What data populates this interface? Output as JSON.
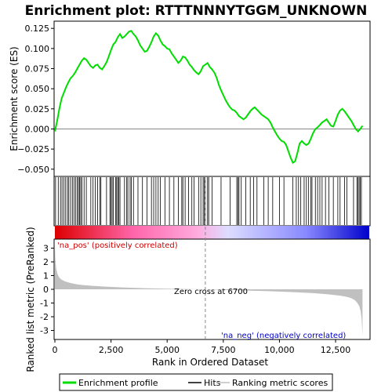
{
  "chart_data": {
    "type": "line",
    "title": "Enrichment plot: RTTTNNNYTGGM_UNKNOWN",
    "es_panel": {
      "ylabel": "Enrichment score (ES)",
      "ylim": [
        -0.058,
        0.133
      ],
      "yticks": [
        -0.05,
        -0.025,
        0.0,
        0.025,
        0.05,
        0.075,
        0.1,
        0.125
      ],
      "ytick_labels": [
        "−0.050",
        "−0.025",
        "0.000",
        "0.025",
        "0.050",
        "0.075",
        "0.100",
        "0.125"
      ],
      "series": [
        {
          "name": "Enrichment profile",
          "color": "#00dd00",
          "x": [
            0,
            100,
            200,
            300,
            400,
            500,
            600,
            700,
            800,
            900,
            1000,
            1100,
            1200,
            1300,
            1400,
            1500,
            1600,
            1700,
            1800,
            1900,
            2000,
            2100,
            2200,
            2300,
            2400,
            2500,
            2600,
            2700,
            2800,
            2900,
            3000,
            3100,
            3200,
            3300,
            3400,
            3500,
            3600,
            3700,
            3800,
            3900,
            4000,
            4100,
            4200,
            4300,
            4400,
            4500,
            4600,
            4700,
            4800,
            4900,
            5000,
            5100,
            5200,
            5300,
            5400,
            5500,
            5600,
            5700,
            5800,
            5900,
            6000,
            6100,
            6200,
            6300,
            6400,
            6500,
            6600,
            6700,
            6800,
            6900,
            7000,
            7100,
            7200,
            7300,
            7400,
            7500,
            7600,
            7700,
            7800,
            7900,
            8000,
            8100,
            8200,
            8300,
            8400,
            8500,
            8600,
            8700,
            8800,
            8900,
            9000,
            9100,
            9200,
            9300,
            9400,
            9500,
            9600,
            9700,
            9800,
            9900,
            10000,
            10100,
            10200,
            10300,
            10400,
            10500,
            10600,
            10700,
            10800,
            10900,
            11000,
            11100,
            11200,
            11300,
            11400,
            11500,
            11600,
            11700,
            11800,
            11900,
            12000,
            12100,
            12200,
            12300,
            12400,
            12500,
            12600,
            12700,
            12800,
            12900,
            13000,
            13100,
            13200,
            13300,
            13400,
            13500,
            13600,
            13700
          ],
          "y": [
            -0.003,
            0.01,
            0.025,
            0.038,
            0.045,
            0.052,
            0.058,
            0.063,
            0.066,
            0.07,
            0.075,
            0.08,
            0.085,
            0.088,
            0.086,
            0.082,
            0.078,
            0.076,
            0.079,
            0.08,
            0.076,
            0.074,
            0.078,
            0.083,
            0.09,
            0.098,
            0.105,
            0.108,
            0.114,
            0.118,
            0.113,
            0.115,
            0.118,
            0.121,
            0.122,
            0.118,
            0.115,
            0.11,
            0.104,
            0.1,
            0.096,
            0.097,
            0.102,
            0.108,
            0.115,
            0.119,
            0.116,
            0.11,
            0.105,
            0.103,
            0.1,
            0.099,
            0.094,
            0.09,
            0.086,
            0.082,
            0.085,
            0.09,
            0.089,
            0.085,
            0.08,
            0.077,
            0.073,
            0.07,
            0.068,
            0.072,
            0.078,
            0.08,
            0.082,
            0.077,
            0.074,
            0.07,
            0.064,
            0.055,
            0.048,
            0.042,
            0.036,
            0.031,
            0.027,
            0.024,
            0.023,
            0.02,
            0.016,
            0.014,
            0.012,
            0.014,
            0.018,
            0.022,
            0.025,
            0.027,
            0.024,
            0.021,
            0.018,
            0.016,
            0.014,
            0.012,
            0.008,
            0.002,
            -0.003,
            -0.008,
            -0.012,
            -0.015,
            -0.016,
            -0.02,
            -0.028,
            -0.036,
            -0.042,
            -0.04,
            -0.03,
            -0.018,
            -0.015,
            -0.018,
            -0.02,
            -0.018,
            -0.012,
            -0.005,
            0.0,
            0.002,
            0.005,
            0.008,
            0.01,
            0.012,
            0.008,
            0.004,
            0.003,
            0.01,
            0.018,
            0.023,
            0.025,
            0.022,
            0.018,
            0.014,
            0.01,
            0.005,
            0.0,
            -0.003,
            0.0,
            0.004
          ]
        }
      ]
    },
    "hits_panel": {
      "color": "#000000",
      "hit_ranks": [
        30,
        150,
        250,
        320,
        400,
        480,
        560,
        620,
        700,
        780,
        850,
        920,
        1000,
        1050,
        1100,
        1150,
        1200,
        1300,
        1400,
        1600,
        1700,
        1800,
        1900,
        2000,
        2050,
        2300,
        2450,
        2500,
        2550,
        2600,
        2700,
        2750,
        2800,
        2850,
        2900,
        3100,
        3200,
        3250,
        3350,
        3400,
        3500,
        3700,
        3900,
        4100,
        4300,
        4400,
        4500,
        4600,
        4700,
        4900,
        5100,
        5300,
        5500,
        5650,
        5700,
        5800,
        5950,
        6100,
        6200,
        6400,
        6500,
        6600,
        6650,
        6700,
        6800,
        6850,
        7000,
        7400,
        7800,
        8100,
        8150,
        8200,
        8300,
        8500,
        8700,
        8850,
        9000,
        9300,
        9500,
        9700,
        10000,
        10200,
        10600,
        10750,
        10850,
        10950,
        11100,
        11200,
        11300,
        11400,
        11450,
        11600,
        11700,
        11800,
        11900,
        12050,
        12200,
        12400,
        12600,
        12700,
        12900,
        13000,
        13300,
        13450,
        13500,
        13550,
        13600,
        13650
      ]
    },
    "rank_panel": {
      "ylabel": "Ranked list metric (PreRanked)",
      "xlabel": "Rank in Ordered Dataset",
      "ylim": [
        -3.6,
        3.6
      ],
      "yticks": [
        -3,
        -2,
        -1,
        0,
        1,
        2,
        3
      ],
      "xlim": [
        0,
        14000
      ],
      "xticks": [
        0,
        2500,
        5000,
        7500,
        10000,
        12500
      ],
      "xtick_labels": [
        "0",
        "2,500",
        "5,000",
        "7,500",
        "10,000",
        "12,500"
      ],
      "fill_color": "#c0c0c0",
      "metric_x": [
        0,
        20,
        60,
        120,
        200,
        300,
        450,
        600,
        800,
        1000,
        1300,
        1700,
        2200,
        3000,
        4000,
        5000,
        6000,
        6700,
        7500,
        8500,
        9500,
        10500,
        11500,
        12200,
        12700,
        13000,
        13200,
        13350,
        13450,
        13550,
        13620,
        13660,
        13700
      ],
      "metric_y": [
        3.2,
        2.2,
        1.5,
        1.1,
        0.85,
        0.7,
        0.58,
        0.5,
        0.42,
        0.36,
        0.3,
        0.25,
        0.2,
        0.14,
        0.08,
        0.04,
        0.01,
        0.0,
        -0.04,
        -0.09,
        -0.14,
        -0.2,
        -0.28,
        -0.37,
        -0.46,
        -0.55,
        -0.65,
        -0.78,
        -0.95,
        -1.2,
        -1.6,
        -2.2,
        -3.4
      ],
      "zero_cross_label": "Zero cross at 6700",
      "zero_cross_rank": 6700,
      "pos_label": "'na_pos' (positively correlated)",
      "neg_label": "'na_neg' (negatively correlated)",
      "pos_label_color": "#cc0000",
      "neg_label_color": "#0000cc"
    },
    "gradient_colors": [
      "#dd0000",
      "#ff66aa",
      "#ffaadd",
      "#ddddff",
      "#8888ff",
      "#0000cc"
    ],
    "legend": {
      "items": [
        {
          "label": "Enrichment profile",
          "color": "#00dd00",
          "kind": "line-thick"
        },
        {
          "label": "Hits",
          "color": "#000000",
          "kind": "line"
        },
        {
          "label": "Ranking metric scores",
          "color": "#c0c0c0",
          "kind": "line"
        }
      ]
    }
  }
}
